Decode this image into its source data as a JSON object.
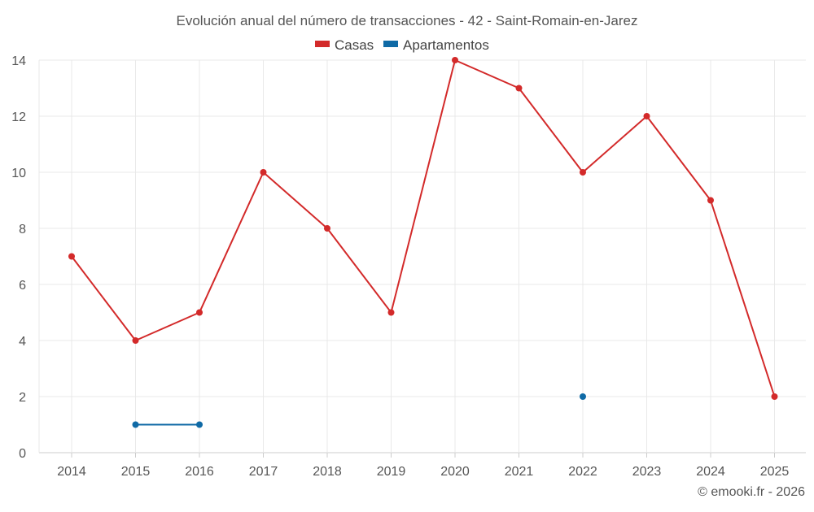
{
  "chart_data": {
    "type": "line",
    "title": "Evolución anual del número de transacciones - 42 - Saint-Romain-en-Jarez",
    "categories": [
      "2014",
      "2015",
      "2016",
      "2017",
      "2018",
      "2019",
      "2020",
      "2021",
      "2022",
      "2023",
      "2024",
      "2025"
    ],
    "series": [
      {
        "name": "Casas",
        "color": "#d32a2a",
        "values": [
          7,
          4,
          5,
          10,
          8,
          5,
          14,
          13,
          10,
          12,
          9,
          2
        ]
      },
      {
        "name": "Apartamentos",
        "color": "#0f6aa6",
        "values": [
          null,
          1,
          1,
          null,
          null,
          null,
          null,
          null,
          2,
          null,
          null,
          null
        ]
      }
    ],
    "ylim": [
      0,
      14
    ],
    "yticks": [
      "0",
      "2",
      "4",
      "6",
      "8",
      "10",
      "12",
      "14"
    ],
    "xlabel": "",
    "ylabel": "",
    "grid": true,
    "legend_position": "top-center"
  },
  "credit": "© emooki.fr - 2026"
}
